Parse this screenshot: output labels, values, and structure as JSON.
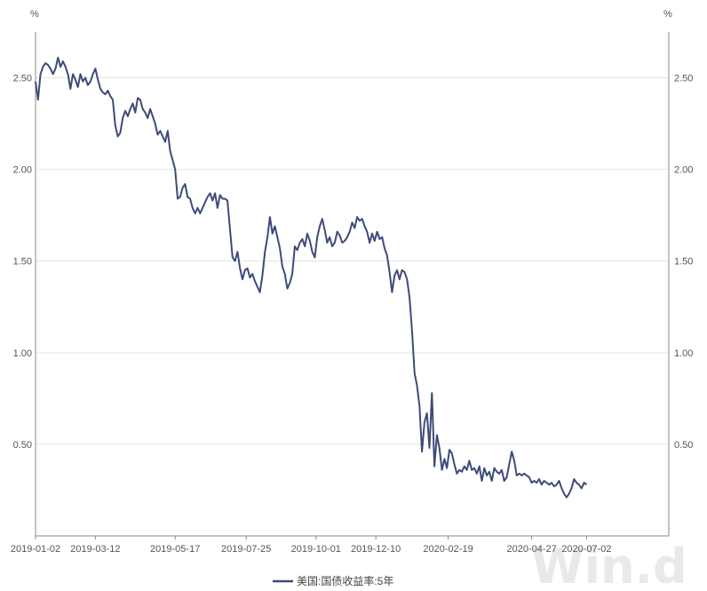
{
  "watermark": "Win.d",
  "chart_data": {
    "type": "line",
    "y_unit_left": "%",
    "y_unit_right": "%",
    "ylim": [
      0.0,
      2.75
    ],
    "y_ticks": [
      0.5,
      1.0,
      1.5,
      2.0,
      2.5
    ],
    "y_tick_labels": [
      "0.50",
      "1.00",
      "1.50",
      "2.00",
      "2.50"
    ],
    "x_ticks": [
      0,
      48,
      112,
      169,
      225,
      273,
      331,
      398,
      442
    ],
    "x_tick_labels": [
      "2019-01-02",
      "2019-03-12",
      "2019-05-17",
      "2019-07-25",
      "2019-10-01",
      "2019-12-10",
      "2020-02-19",
      "2020-04-27",
      "2020-07-02"
    ],
    "x_range": [
      0,
      508
    ],
    "grid": true,
    "legend_position": "bottom-center",
    "series": [
      {
        "name": "美国:国债收益率:5年",
        "color": "#3d4b78",
        "points": [
          [
            0,
            2.48
          ],
          [
            2,
            2.38
          ],
          [
            4,
            2.52
          ],
          [
            6,
            2.56
          ],
          [
            8,
            2.58
          ],
          [
            10,
            2.57
          ],
          [
            12,
            2.55
          ],
          [
            14,
            2.52
          ],
          [
            16,
            2.55
          ],
          [
            18,
            2.61
          ],
          [
            20,
            2.56
          ],
          [
            22,
            2.59
          ],
          [
            24,
            2.56
          ],
          [
            26,
            2.52
          ],
          [
            28,
            2.44
          ],
          [
            30,
            2.52
          ],
          [
            32,
            2.49
          ],
          [
            34,
            2.45
          ],
          [
            36,
            2.52
          ],
          [
            38,
            2.48
          ],
          [
            40,
            2.5
          ],
          [
            42,
            2.46
          ],
          [
            44,
            2.48
          ],
          [
            46,
            2.52
          ],
          [
            48,
            2.55
          ],
          [
            50,
            2.49
          ],
          [
            52,
            2.44
          ],
          [
            54,
            2.42
          ],
          [
            56,
            2.41
          ],
          [
            58,
            2.43
          ],
          [
            60,
            2.4
          ],
          [
            62,
            2.38
          ],
          [
            64,
            2.24
          ],
          [
            66,
            2.18
          ],
          [
            68,
            2.2
          ],
          [
            70,
            2.28
          ],
          [
            72,
            2.32
          ],
          [
            74,
            2.29
          ],
          [
            76,
            2.33
          ],
          [
            78,
            2.36
          ],
          [
            80,
            2.31
          ],
          [
            82,
            2.39
          ],
          [
            84,
            2.38
          ],
          [
            86,
            2.33
          ],
          [
            88,
            2.31
          ],
          [
            90,
            2.28
          ],
          [
            92,
            2.33
          ],
          [
            94,
            2.29
          ],
          [
            96,
            2.25
          ],
          [
            98,
            2.19
          ],
          [
            100,
            2.21
          ],
          [
            102,
            2.18
          ],
          [
            104,
            2.15
          ],
          [
            106,
            2.21
          ],
          [
            108,
            2.1
          ],
          [
            110,
            2.05
          ],
          [
            112,
            2.0
          ],
          [
            114,
            1.84
          ],
          [
            116,
            1.85
          ],
          [
            118,
            1.9
          ],
          [
            120,
            1.92
          ],
          [
            122,
            1.85
          ],
          [
            124,
            1.84
          ],
          [
            126,
            1.79
          ],
          [
            128,
            1.76
          ],
          [
            130,
            1.79
          ],
          [
            132,
            1.76
          ],
          [
            134,
            1.79
          ],
          [
            136,
            1.82
          ],
          [
            138,
            1.85
          ],
          [
            140,
            1.87
          ],
          [
            142,
            1.83
          ],
          [
            144,
            1.87
          ],
          [
            146,
            1.79
          ],
          [
            148,
            1.86
          ],
          [
            150,
            1.84
          ],
          [
            152,
            1.84
          ],
          [
            154,
            1.83
          ],
          [
            156,
            1.67
          ],
          [
            158,
            1.52
          ],
          [
            160,
            1.5
          ],
          [
            162,
            1.55
          ],
          [
            164,
            1.46
          ],
          [
            166,
            1.4
          ],
          [
            168,
            1.45
          ],
          [
            170,
            1.46
          ],
          [
            172,
            1.41
          ],
          [
            174,
            1.43
          ],
          [
            176,
            1.39
          ],
          [
            178,
            1.36
          ],
          [
            180,
            1.33
          ],
          [
            182,
            1.42
          ],
          [
            184,
            1.55
          ],
          [
            186,
            1.63
          ],
          [
            188,
            1.74
          ],
          [
            190,
            1.65
          ],
          [
            192,
            1.69
          ],
          [
            194,
            1.63
          ],
          [
            196,
            1.57
          ],
          [
            198,
            1.47
          ],
          [
            200,
            1.43
          ],
          [
            202,
            1.35
          ],
          [
            204,
            1.38
          ],
          [
            206,
            1.43
          ],
          [
            208,
            1.58
          ],
          [
            210,
            1.56
          ],
          [
            212,
            1.6
          ],
          [
            214,
            1.62
          ],
          [
            216,
            1.58
          ],
          [
            218,
            1.65
          ],
          [
            220,
            1.61
          ],
          [
            222,
            1.55
          ],
          [
            224,
            1.52
          ],
          [
            226,
            1.63
          ],
          [
            228,
            1.69
          ],
          [
            230,
            1.73
          ],
          [
            232,
            1.67
          ],
          [
            234,
            1.6
          ],
          [
            236,
            1.63
          ],
          [
            238,
            1.58
          ],
          [
            240,
            1.6
          ],
          [
            242,
            1.66
          ],
          [
            244,
            1.64
          ],
          [
            246,
            1.6
          ],
          [
            248,
            1.61
          ],
          [
            250,
            1.63
          ],
          [
            252,
            1.66
          ],
          [
            254,
            1.71
          ],
          [
            256,
            1.68
          ],
          [
            258,
            1.74
          ],
          [
            260,
            1.72
          ],
          [
            262,
            1.73
          ],
          [
            264,
            1.69
          ],
          [
            266,
            1.66
          ],
          [
            268,
            1.6
          ],
          [
            270,
            1.65
          ],
          [
            272,
            1.61
          ],
          [
            274,
            1.66
          ],
          [
            276,
            1.62
          ],
          [
            278,
            1.63
          ],
          [
            280,
            1.57
          ],
          [
            282,
            1.53
          ],
          [
            284,
            1.44
          ],
          [
            286,
            1.33
          ],
          [
            288,
            1.42
          ],
          [
            290,
            1.45
          ],
          [
            292,
            1.4
          ],
          [
            294,
            1.45
          ],
          [
            296,
            1.44
          ],
          [
            298,
            1.4
          ],
          [
            300,
            1.3
          ],
          [
            302,
            1.12
          ],
          [
            304,
            0.89
          ],
          [
            306,
            0.82
          ],
          [
            308,
            0.71
          ],
          [
            310,
            0.46
          ],
          [
            312,
            0.62
          ],
          [
            314,
            0.67
          ],
          [
            316,
            0.48
          ],
          [
            318,
            0.78
          ],
          [
            320,
            0.38
          ],
          [
            322,
            0.55
          ],
          [
            324,
            0.48
          ],
          [
            326,
            0.36
          ],
          [
            328,
            0.42
          ],
          [
            330,
            0.37
          ],
          [
            332,
            0.47
          ],
          [
            334,
            0.45
          ],
          [
            336,
            0.39
          ],
          [
            338,
            0.34
          ],
          [
            340,
            0.36
          ],
          [
            342,
            0.35
          ],
          [
            344,
            0.38
          ],
          [
            346,
            0.36
          ],
          [
            348,
            0.41
          ],
          [
            350,
            0.36
          ],
          [
            352,
            0.37
          ],
          [
            354,
            0.34
          ],
          [
            356,
            0.38
          ],
          [
            358,
            0.3
          ],
          [
            360,
            0.37
          ],
          [
            362,
            0.33
          ],
          [
            364,
            0.35
          ],
          [
            366,
            0.3
          ],
          [
            368,
            0.37
          ],
          [
            370,
            0.35
          ],
          [
            372,
            0.34
          ],
          [
            374,
            0.36
          ],
          [
            376,
            0.3
          ],
          [
            378,
            0.32
          ],
          [
            380,
            0.39
          ],
          [
            382,
            0.46
          ],
          [
            384,
            0.41
          ],
          [
            386,
            0.33
          ],
          [
            388,
            0.34
          ],
          [
            390,
            0.33
          ],
          [
            392,
            0.34
          ],
          [
            394,
            0.33
          ],
          [
            396,
            0.32
          ],
          [
            398,
            0.29
          ],
          [
            400,
            0.3
          ],
          [
            402,
            0.29
          ],
          [
            404,
            0.31
          ],
          [
            406,
            0.28
          ],
          [
            408,
            0.3
          ],
          [
            410,
            0.29
          ],
          [
            412,
            0.28
          ],
          [
            414,
            0.29
          ],
          [
            416,
            0.27
          ],
          [
            418,
            0.28
          ],
          [
            420,
            0.3
          ],
          [
            422,
            0.26
          ],
          [
            424,
            0.23
          ],
          [
            426,
            0.21
          ],
          [
            428,
            0.23
          ],
          [
            430,
            0.26
          ],
          [
            432,
            0.31
          ],
          [
            434,
            0.29
          ],
          [
            436,
            0.28
          ],
          [
            438,
            0.26
          ],
          [
            440,
            0.29
          ],
          [
            442,
            0.28
          ]
        ]
      }
    ]
  }
}
